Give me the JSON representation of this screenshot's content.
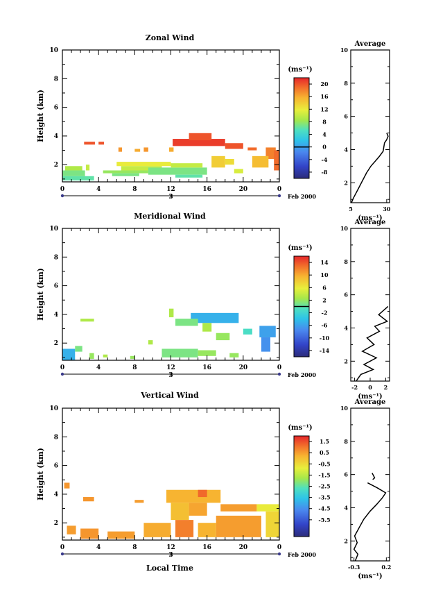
{
  "figure": {
    "date_label": "Feb 2000",
    "xlabel": "Local Time",
    "day_label": "3"
  },
  "chart_data": [
    {
      "type": "heatmap",
      "title": "Zonal Wind",
      "ylabel": "Height (km)",
      "xlabel": "Local Time",
      "x_range": [
        0,
        24
      ],
      "x_ticks": [
        "0",
        "4",
        "8",
        "12",
        "16",
        "20",
        "0"
      ],
      "y_range": [
        0.8,
        10
      ],
      "y_ticks": [
        "2",
        "4",
        "6",
        "8",
        "10"
      ],
      "colorbar": {
        "unit": "(ms⁻¹)",
        "range": [
          -10,
          22
        ],
        "ticks": [
          "20",
          "16",
          "12",
          "8",
          "4",
          "0",
          "-4",
          "-8"
        ],
        "zero_line": 0
      },
      "cells": [
        {
          "t0": 2.4,
          "t1": 3.6,
          "h0": 3.4,
          "h1": 3.6,
          "v": 20
        },
        {
          "t0": 4.0,
          "t1": 4.6,
          "h0": 3.4,
          "h1": 3.6,
          "v": 20
        },
        {
          "t0": 12.2,
          "t1": 18.0,
          "h0": 3.3,
          "h1": 3.8,
          "v": 21
        },
        {
          "t0": 14.0,
          "t1": 16.5,
          "h0": 3.7,
          "h1": 4.2,
          "v": 20
        },
        {
          "t0": 18.0,
          "t1": 20.0,
          "h0": 3.1,
          "h1": 3.5,
          "v": 20
        },
        {
          "t0": 20.5,
          "t1": 21.5,
          "h0": 3.0,
          "h1": 3.2,
          "v": 19
        },
        {
          "t0": 6.2,
          "t1": 6.6,
          "h0": 2.9,
          "h1": 3.2,
          "v": 17
        },
        {
          "t0": 8.0,
          "t1": 8.6,
          "h0": 2.9,
          "h1": 3.1,
          "v": 16
        },
        {
          "t0": 9.0,
          "t1": 9.5,
          "h0": 2.9,
          "h1": 3.2,
          "v": 17
        },
        {
          "t0": 11.8,
          "t1": 12.3,
          "h0": 2.9,
          "h1": 3.2,
          "v": 16
        },
        {
          "t0": 22.5,
          "t1": 23.6,
          "h0": 2.4,
          "h1": 3.2,
          "v": 18
        },
        {
          "t0": 23.4,
          "t1": 24.0,
          "h0": 1.6,
          "h1": 3.0,
          "v": 19
        },
        {
          "t0": 21.0,
          "t1": 22.8,
          "h0": 1.8,
          "h1": 2.6,
          "v": 15
        },
        {
          "t0": 16.5,
          "t1": 18.0,
          "h0": 1.8,
          "h1": 2.6,
          "v": 14
        },
        {
          "t0": 18.0,
          "t1": 19.0,
          "h0": 2.0,
          "h1": 2.4,
          "v": 13
        },
        {
          "t0": 6.0,
          "t1": 12.0,
          "h0": 1.9,
          "h1": 2.2,
          "v": 12
        },
        {
          "t0": 6.5,
          "t1": 11.0,
          "h0": 1.6,
          "h1": 1.9,
          "v": 10
        },
        {
          "t0": 4.5,
          "t1": 9.5,
          "h0": 1.4,
          "h1": 1.6,
          "v": 8
        },
        {
          "t0": 9.5,
          "t1": 16.0,
          "h0": 1.3,
          "h1": 1.8,
          "v": 7
        },
        {
          "t0": 12.0,
          "t1": 15.5,
          "h0": 1.8,
          "h1": 2.1,
          "v": 10
        },
        {
          "t0": 0.0,
          "t1": 2.5,
          "h0": 1.2,
          "h1": 1.6,
          "v": 7
        },
        {
          "t0": 0.0,
          "t1": 3.5,
          "h0": 0.9,
          "h1": 1.2,
          "v": 6
        },
        {
          "t0": 0.3,
          "t1": 2.2,
          "h0": 1.6,
          "h1": 1.9,
          "v": 9
        },
        {
          "t0": 2.6,
          "t1": 3.0,
          "h0": 1.6,
          "h1": 2.0,
          "v": 10
        },
        {
          "t0": 12.5,
          "t1": 15.5,
          "h0": 1.1,
          "h1": 1.3,
          "v": 6
        },
        {
          "t0": 19.0,
          "t1": 20.0,
          "h0": 1.4,
          "h1": 1.7,
          "v": 11
        },
        {
          "t0": 5.5,
          "t1": 8.5,
          "h0": 1.2,
          "h1": 1.4,
          "v": 7
        }
      ],
      "profile": {
        "title": "Average",
        "xlabel": "(ms⁻¹)",
        "x_range": [
          5,
          32
        ],
        "x_ticks": [
          "5",
          "30"
        ],
        "y_ticks": [
          "2",
          "4",
          "6",
          "8",
          "10"
        ],
        "points": [
          [
            5.5,
            0.8
          ],
          [
            7,
            1.1
          ],
          [
            10,
            1.6
          ],
          [
            13,
            2.1
          ],
          [
            16,
            2.6
          ],
          [
            19,
            3.0
          ],
          [
            22,
            3.3
          ],
          [
            25,
            3.6
          ],
          [
            27.5,
            3.9
          ],
          [
            28.5,
            4.4
          ],
          [
            30,
            4.6
          ],
          [
            31,
            4.8
          ],
          [
            30,
            5.0
          ]
        ]
      }
    },
    {
      "type": "heatmap",
      "title": "Meridional Wind",
      "ylabel": "Height (km)",
      "xlabel": "Local Time",
      "x_range": [
        0,
        24
      ],
      "x_ticks": [
        "0",
        "4",
        "8",
        "12",
        "16",
        "20",
        "0"
      ],
      "y_range": [
        0.8,
        10
      ],
      "y_ticks": [
        "2",
        "4",
        "6",
        "8",
        "10"
      ],
      "colorbar": {
        "unit": "(ms⁻¹)",
        "range": [
          -16,
          16
        ],
        "ticks": [
          "14",
          "10",
          "6",
          "2",
          "-2",
          "-6",
          "-10",
          "-14"
        ],
        "zero_line": 0
      },
      "cells": [
        {
          "t0": 2.0,
          "t1": 3.5,
          "h0": 3.5,
          "h1": 3.7,
          "v": 3
        },
        {
          "t0": 11.8,
          "t1": 12.3,
          "h0": 3.8,
          "h1": 4.4,
          "v": 3
        },
        {
          "t0": 14.2,
          "t1": 19.5,
          "h0": 3.4,
          "h1": 4.1,
          "v": -5
        },
        {
          "t0": 12.5,
          "t1": 15.0,
          "h0": 3.2,
          "h1": 3.7,
          "v": 1
        },
        {
          "t0": 15.5,
          "t1": 16.5,
          "h0": 2.8,
          "h1": 3.4,
          "v": 3
        },
        {
          "t0": 17.0,
          "t1": 18.5,
          "h0": 2.2,
          "h1": 2.7,
          "v": 2
        },
        {
          "t0": 21.8,
          "t1": 23.6,
          "h0": 2.4,
          "h1": 3.2,
          "v": -6
        },
        {
          "t0": 22.0,
          "t1": 23.0,
          "h0": 1.4,
          "h1": 2.4,
          "v": -7
        },
        {
          "t0": 20.0,
          "t1": 21.0,
          "h0": 2.6,
          "h1": 3.0,
          "v": -1
        },
        {
          "t0": 11.0,
          "t1": 15.0,
          "h0": 1.0,
          "h1": 1.6,
          "v": 1
        },
        {
          "t0": 15.0,
          "t1": 17.0,
          "h0": 1.1,
          "h1": 1.5,
          "v": 2
        },
        {
          "t0": 9.5,
          "t1": 10.0,
          "h0": 1.9,
          "h1": 2.2,
          "v": 3
        },
        {
          "t0": 0.0,
          "t1": 1.4,
          "h0": 0.8,
          "h1": 1.6,
          "v": -5
        },
        {
          "t0": 1.4,
          "t1": 2.2,
          "h0": 1.4,
          "h1": 1.8,
          "v": 1
        },
        {
          "t0": 3.0,
          "t1": 3.5,
          "h0": 0.9,
          "h1": 1.3,
          "v": 2
        },
        {
          "t0": 4.5,
          "t1": 5.0,
          "h0": 1.0,
          "h1": 1.2,
          "v": 3
        },
        {
          "t0": 7.5,
          "t1": 8.0,
          "h0": 0.9,
          "h1": 1.1,
          "v": 2
        },
        {
          "t0": 18.5,
          "t1": 19.5,
          "h0": 1.0,
          "h1": 1.3,
          "v": 2
        }
      ],
      "profile": {
        "title": "Average",
        "xlabel": "(ms⁻¹)",
        "x_range": [
          -2.5,
          2.5
        ],
        "x_ticks": [
          "-2",
          "0",
          "2"
        ],
        "y_ticks": [
          "2",
          "4",
          "6",
          "8",
          "10"
        ],
        "points": [
          [
            -1.8,
            0.8
          ],
          [
            -1.2,
            1.2
          ],
          [
            0.4,
            1.5
          ],
          [
            -0.8,
            1.8
          ],
          [
            0.8,
            2.2
          ],
          [
            -1.0,
            2.6
          ],
          [
            0.5,
            3.0
          ],
          [
            -0.4,
            3.4
          ],
          [
            1.2,
            3.8
          ],
          [
            0.6,
            4.1
          ],
          [
            2.2,
            4.4
          ],
          [
            1.1,
            4.8
          ],
          [
            2.3,
            5.3
          ]
        ]
      }
    },
    {
      "type": "heatmap",
      "title": "Vertical Wind",
      "ylabel": "Height (km)",
      "xlabel": "Local Time",
      "x_range": [
        0,
        24
      ],
      "x_ticks": [
        "0",
        "4",
        "8",
        "12",
        "16",
        "20",
        "0"
      ],
      "y_range": [
        0.8,
        10
      ],
      "y_ticks": [
        "2",
        "4",
        "6",
        "8",
        "10"
      ],
      "colorbar": {
        "unit": "(ms⁻¹)",
        "range": [
          -7,
          2
        ],
        "ticks": [
          "1.5",
          "0.5",
          "-0.5",
          "-1.5",
          "-2.5",
          "-3.5",
          "-4.5",
          "-5.5"
        ],
        "zero_line": null
      },
      "cells": [
        {
          "t0": 0.2,
          "t1": 0.8,
          "h0": 4.4,
          "h1": 4.8,
          "v": 0.6
        },
        {
          "t0": 2.3,
          "t1": 3.5,
          "h0": 3.5,
          "h1": 3.8,
          "v": 0.6
        },
        {
          "t0": 8.0,
          "t1": 9.0,
          "h0": 3.4,
          "h1": 3.6,
          "v": 0.5
        },
        {
          "t0": 11.5,
          "t1": 17.5,
          "h0": 3.4,
          "h1": 4.3,
          "v": 0.2
        },
        {
          "t0": 15.0,
          "t1": 16.0,
          "h0": 3.8,
          "h1": 4.3,
          "v": 1.2
        },
        {
          "t0": 12.0,
          "t1": 14.0,
          "h0": 2.2,
          "h1": 3.4,
          "v": 0.0
        },
        {
          "t0": 14.0,
          "t1": 16.0,
          "h0": 2.5,
          "h1": 3.4,
          "v": 0.4
        },
        {
          "t0": 17.5,
          "t1": 21.5,
          "h0": 2.8,
          "h1": 3.3,
          "v": 0.5
        },
        {
          "t0": 21.5,
          "t1": 24.0,
          "h0": 2.8,
          "h1": 3.3,
          "v": -0.8
        },
        {
          "t0": 22.5,
          "t1": 24.0,
          "h0": 1.0,
          "h1": 2.8,
          "v": -0.4
        },
        {
          "t0": 12.5,
          "t1": 14.5,
          "h0": 1.0,
          "h1": 2.2,
          "v": 0.9
        },
        {
          "t0": 9.0,
          "t1": 12.0,
          "h0": 1.0,
          "h1": 2.0,
          "v": 0.3
        },
        {
          "t0": 17.0,
          "t1": 22.0,
          "h0": 1.0,
          "h1": 2.5,
          "v": 0.5
        },
        {
          "t0": 15.0,
          "t1": 17.0,
          "h0": 1.0,
          "h1": 2.0,
          "v": 0.2
        },
        {
          "t0": 2.0,
          "t1": 4.0,
          "h0": 0.9,
          "h1": 1.6,
          "v": 0.6
        },
        {
          "t0": 0.5,
          "t1": 1.5,
          "h0": 1.2,
          "h1": 1.8,
          "v": 0.5
        },
        {
          "t0": 5.0,
          "t1": 8.0,
          "h0": 0.9,
          "h1": 1.4,
          "v": 0.5
        }
      ],
      "profile": {
        "title": "Average",
        "xlabel": "(ms⁻¹)",
        "x_range": [
          -0.35,
          0.25
        ],
        "x_ticks": [
          "-0.3",
          "0.2"
        ],
        "y_ticks": [
          "2",
          "4",
          "6",
          "8",
          "10"
        ],
        "points": [
          [
            -0.28,
            0.8
          ],
          [
            -0.24,
            1.2
          ],
          [
            -0.3,
            1.5
          ],
          [
            -0.25,
            1.9
          ],
          [
            -0.29,
            2.3
          ],
          [
            -0.22,
            2.8
          ],
          [
            -0.15,
            3.3
          ],
          [
            -0.05,
            3.8
          ],
          [
            0.05,
            4.2
          ],
          [
            0.14,
            4.6
          ],
          [
            0.19,
            4.9
          ],
          [
            0.06,
            5.2
          ],
          [
            -0.09,
            5.5
          ]
        ],
        "extra_points": [
          [
            -0.02,
            6.1
          ],
          [
            0.02,
            5.8
          ],
          [
            -0.01,
            5.7
          ]
        ]
      }
    }
  ]
}
